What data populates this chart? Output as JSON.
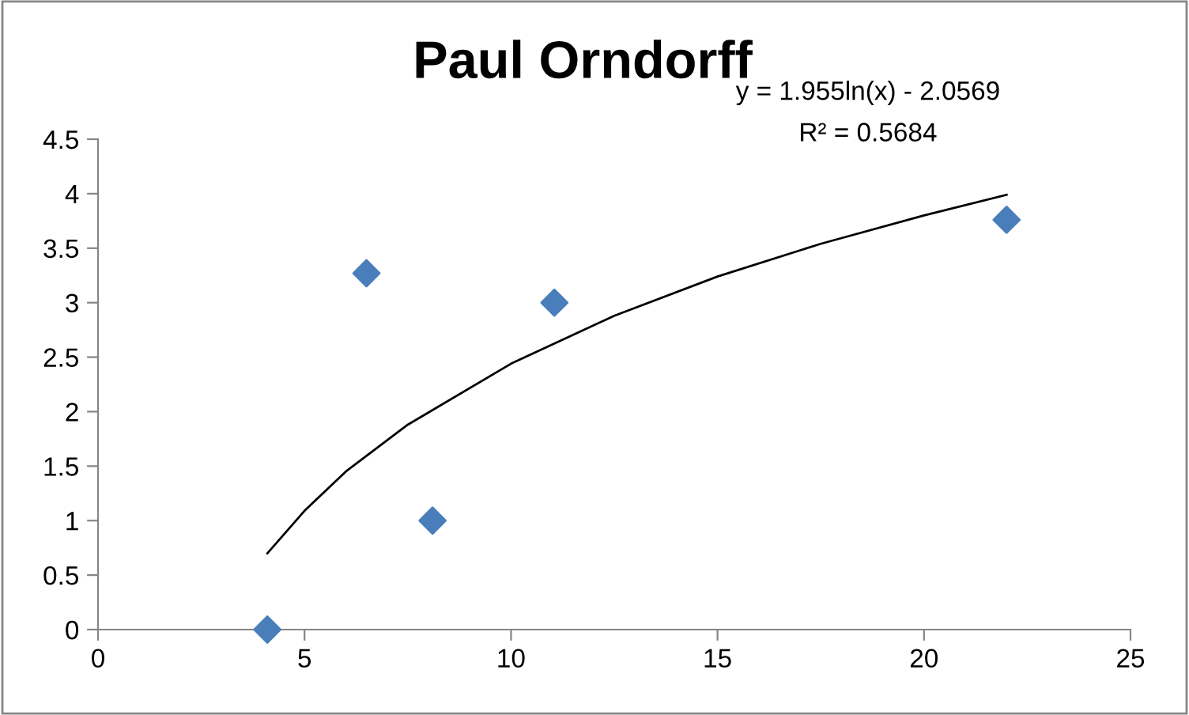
{
  "chart_data": {
    "type": "scatter",
    "title": "Paul Orndorff",
    "series": [
      {
        "color": "#4a7ebb",
        "marker": "diamond",
        "x": [
          4.1,
          6.5,
          8.1,
          11.05,
          22
        ],
        "values": [
          0,
          3.27,
          1.0,
          3.0,
          3.76
        ]
      },
      {
        "type": "line",
        "color": "#000000",
        "marker": "none",
        "line_style": "solid",
        "x": [
          4.1,
          5,
          6,
          7.5,
          10,
          12.5,
          15,
          17.5,
          20,
          22
        ],
        "values": [
          0.7,
          1.09,
          1.45,
          1.88,
          2.44,
          2.88,
          3.24,
          3.54,
          3.8,
          3.99
        ]
      }
    ],
    "annotations": [
      "y = 1.955ln(x) - 2.0569",
      "R² = 0.5684"
    ],
    "xlim": [
      0,
      25
    ],
    "xticks": [
      0,
      5,
      10,
      15,
      20,
      25
    ],
    "ylim": [
      0,
      4.5
    ],
    "yticks": [
      0,
      0.5,
      1,
      1.5,
      2,
      2.5,
      3,
      3.5,
      4,
      4.5
    ],
    "grid": false,
    "legend": false
  }
}
